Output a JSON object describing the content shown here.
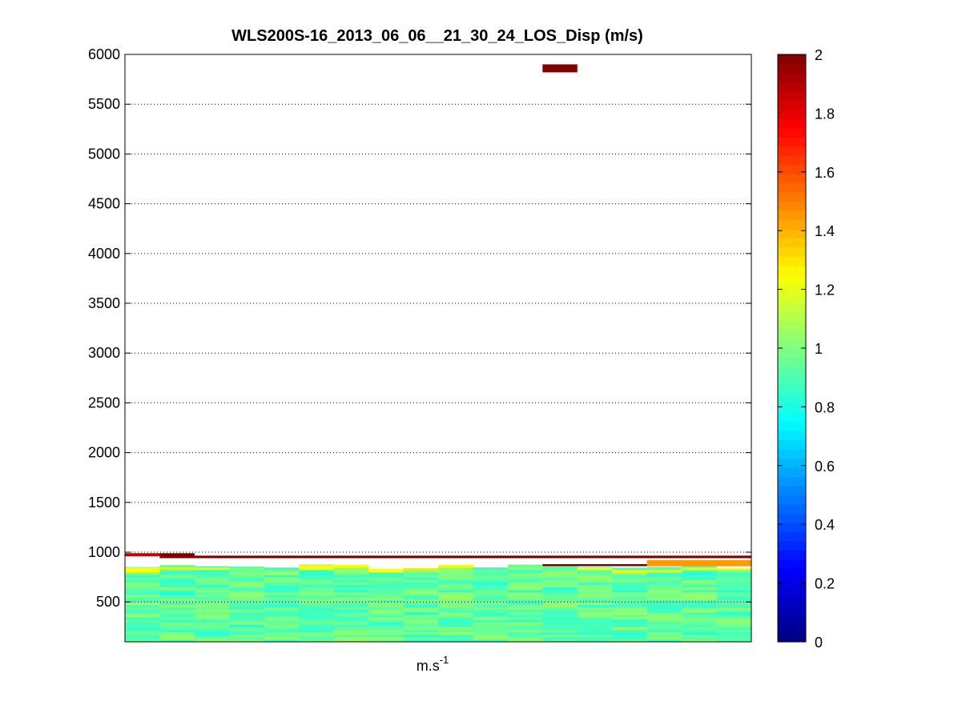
{
  "chart_data": {
    "type": "heatmap",
    "title": "WLS200S-16_2013_06_06__21_30_24_LOS_Disp (m/s)",
    "xlabel": "m.s",
    "xlabel_superscript": "-1",
    "ylim": [
      100,
      6000
    ],
    "yticks": [
      500,
      1000,
      1500,
      2000,
      2500,
      3000,
      3500,
      4000,
      4500,
      5000,
      5500,
      6000
    ],
    "grid": "horizontal-dotted",
    "colorbar": {
      "colormap": "jet",
      "clim": [
        0,
        2
      ],
      "ticks": [
        0,
        0.2,
        0.4,
        0.6,
        0.8,
        1,
        1.2,
        1.4,
        1.6,
        1.8,
        2
      ]
    },
    "columns": 18,
    "notable_cells": [
      {
        "column": 12,
        "altitude_range": [
          5820,
          5900
        ],
        "value": 2.0
      },
      {
        "column": 0,
        "altitude_range": [
          960,
          990
        ],
        "value": 1.85
      },
      {
        "column": 1,
        "altitude_range": [
          960,
          990
        ],
        "value": 2.0
      },
      {
        "columns": [
          1,
          17
        ],
        "altitude_range": [
          940,
          965
        ],
        "value": 2.0
      },
      {
        "columns": [
          12,
          17
        ],
        "altitude_range": [
          860,
          880
        ],
        "value": 2.0
      },
      {
        "columns": [
          15,
          17
        ],
        "altitude_range": [
          860,
          920
        ],
        "value": 1.45
      }
    ],
    "low_layer": {
      "altitude_range": [
        100,
        880
      ],
      "typical_value_range": [
        0.8,
        1.3
      ]
    }
  }
}
